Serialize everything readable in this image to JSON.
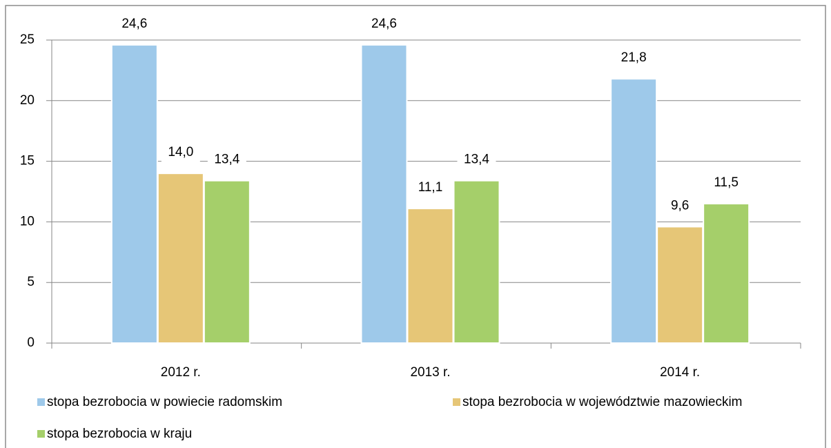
{
  "chart_data": {
    "type": "bar",
    "categories": [
      "2012 r.",
      "2013 r.",
      "2014 r."
    ],
    "series": [
      {
        "name": "stopa bezrobocia w powiecie radomskim",
        "color": "#9ec9ea",
        "values": [
          24.6,
          24.6,
          21.8
        ],
        "value_labels": [
          "24,6",
          "24,6",
          "21,8"
        ]
      },
      {
        "name": "stopa bezrobocia w województwie mazowieckim",
        "color": "#e6c677",
        "values": [
          14.0,
          11.1,
          9.6
        ],
        "value_labels": [
          "14,0",
          "11,1",
          "9,6"
        ]
      },
      {
        "name": "stopa bezrobocia w kraju",
        "color": "#a5cf6a",
        "values": [
          13.4,
          13.4,
          11.5
        ],
        "value_labels": [
          "13,4",
          "13,4",
          "11,5"
        ]
      }
    ],
    "ylim": [
      0,
      25
    ],
    "yticks": [
      0,
      5,
      10,
      15,
      20,
      25
    ],
    "grid": true,
    "legend": "bottom"
  }
}
